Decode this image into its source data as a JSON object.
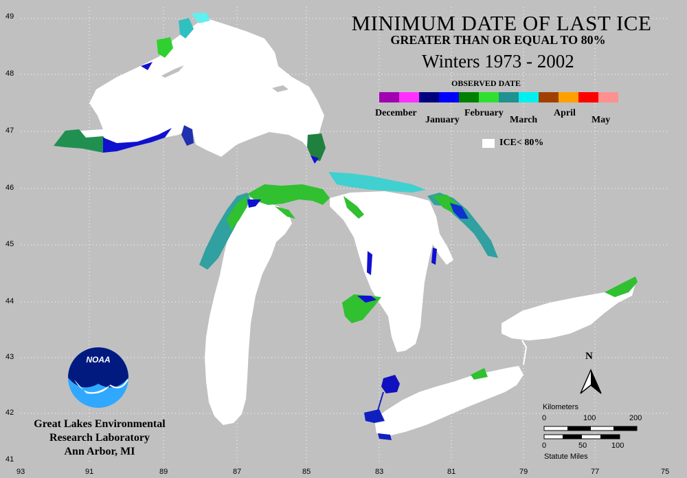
{
  "title": {
    "line1": "MINIMUM DATE OF LAST ICE",
    "line2": "GREATER THAN OR EQUAL TO 80%",
    "line3": "Winters 1973 - 2002"
  },
  "legend": {
    "title": "OBSERVED DATE",
    "months": [
      "December",
      "January",
      "February",
      "March",
      "April",
      "May"
    ],
    "colors": [
      "#a000b0",
      "#ff30ff",
      "#000080",
      "#0000ff",
      "#008000",
      "#30e030",
      "#209090",
      "#00f0f0",
      "#a04000",
      "#ffa000",
      "#ff0000",
      "#ff9090"
    ],
    "ice_label": "ICE< 80%"
  },
  "axes": {
    "lat_ticks": [
      "49",
      "48",
      "47",
      "46",
      "45",
      "44",
      "43",
      "42",
      "41"
    ],
    "lon_ticks": [
      "93",
      "91",
      "89",
      "87",
      "85",
      "83",
      "81",
      "79",
      "77",
      "75"
    ]
  },
  "organization": {
    "lines": [
      "Great Lakes Environmental",
      "Research Laboratory",
      "Ann Arbor, MI"
    ],
    "logo_text": "NOAA"
  },
  "north_label": "N",
  "scale": {
    "km_label": "Kilometers",
    "km_ticks": [
      "0",
      "100",
      "200"
    ],
    "mi_ticks": [
      "0",
      "50",
      "100"
    ],
    "mi_label": "Statute Miles"
  }
}
